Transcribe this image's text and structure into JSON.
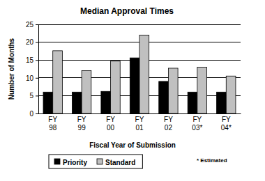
{
  "chart_data": {
    "type": "bar",
    "title": "Median Approval Times",
    "x_label": "Fiscal Year of Submission",
    "y_label": "Number of Months",
    "categories": [
      "FY 98",
      "FY 99",
      "FY 00",
      "FY 01",
      "FY 02",
      "FY 03*",
      "FY 04*"
    ],
    "series": [
      {
        "name": "Priority",
        "color": "#000000",
        "values": [
          6,
          6,
          6.2,
          15.6,
          9,
          6,
          6
        ]
      },
      {
        "name": "Standard",
        "color": "#c0c0c0",
        "values": [
          17.6,
          12,
          14.7,
          22,
          12.7,
          13,
          10.5
        ]
      }
    ],
    "ylim": [
      0,
      25
    ],
    "yticks": [
      0,
      5,
      10,
      15,
      20,
      25
    ],
    "grid": true,
    "legend": "bottom",
    "annotations": [
      "* Estimated"
    ]
  }
}
